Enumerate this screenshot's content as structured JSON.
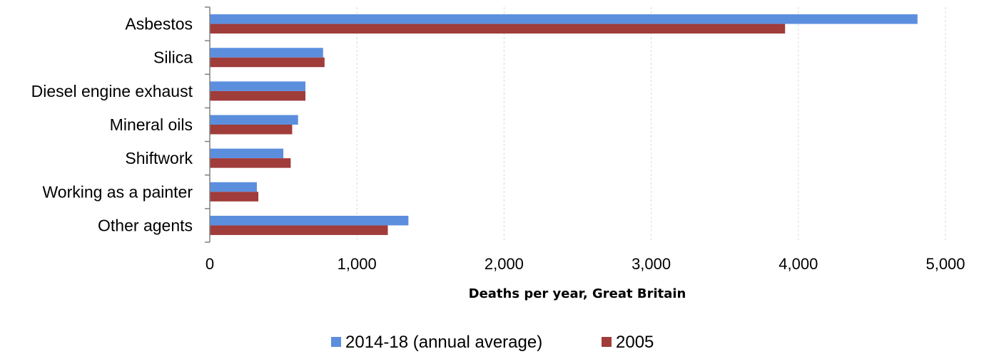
{
  "chart_data": {
    "type": "bar",
    "orientation": "horizontal",
    "categories": [
      "Asbestos",
      "Silica",
      "Diesel engine exhaust",
      "Mineral oils",
      "Shiftwork",
      "Working as a painter",
      "Other agents"
    ],
    "series": [
      {
        "name": "2014-18 (annual average)",
        "color": "#5B8FDE",
        "values": [
          4810,
          770,
          650,
          600,
          500,
          320,
          1350
        ]
      },
      {
        "name": "2005",
        "color": "#A03C3A",
        "values": [
          3910,
          780,
          650,
          560,
          550,
          330,
          1210
        ]
      }
    ],
    "xlabel": "Deaths per year, Great Britain",
    "ylabel": "",
    "xlim": [
      0,
      5000
    ],
    "xticks": [
      0,
      1000,
      2000,
      3000,
      4000,
      5000
    ],
    "xtick_labels": [
      "0",
      "1,000",
      "2,000",
      "3,000",
      "4,000",
      "5,000"
    ],
    "grid": true,
    "legend_position": "bottom"
  }
}
